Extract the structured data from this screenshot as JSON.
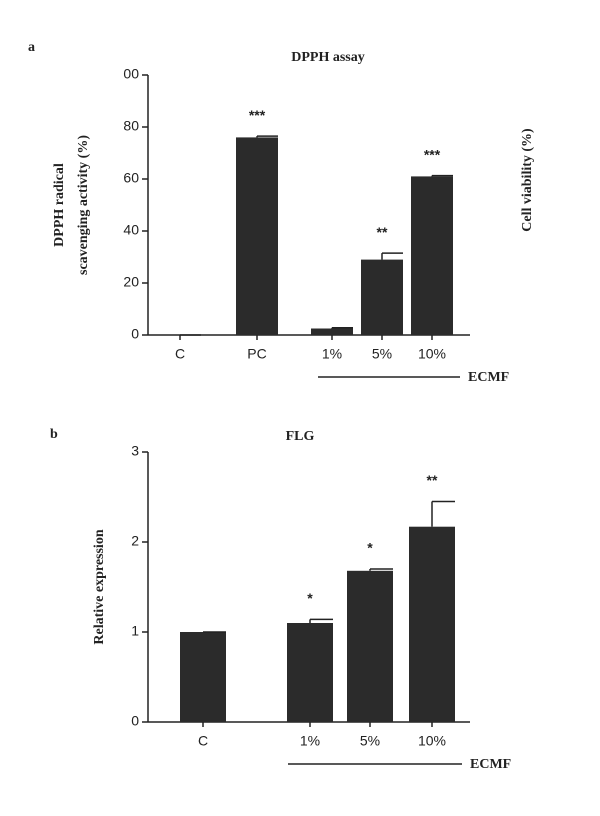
{
  "chart_data": [
    {
      "type": "bar",
      "panel": "a",
      "title": "DPPH assay",
      "ylabel": [
        "DPPH radical",
        "scavenging activity (%)"
      ],
      "y2label": "Cell viability (%)",
      "categories": [
        "C",
        "PC",
        "1%",
        "5%",
        "10%"
      ],
      "values": [
        0,
        76,
        2.5,
        29,
        61
      ],
      "errors": [
        0,
        0.5,
        0.3,
        2.5,
        0.3
      ],
      "significance": [
        null,
        "***",
        null,
        "**",
        "***"
      ],
      "group_label": "ECMF",
      "color": "#2b2b2b",
      "ylim": [
        0,
        100
      ],
      "yticks": [
        0,
        20,
        40,
        60,
        80,
        {
          "value": 100,
          "label": "00"
        }
      ]
    },
    {
      "type": "bar",
      "panel": "b",
      "title": "FLG",
      "ylabel": [
        "Relative expression"
      ],
      "categories": [
        "C",
        "1%",
        "5%",
        "10%"
      ],
      "values": [
        1,
        1.1,
        1.68,
        2.17
      ],
      "errors": [
        0,
        0.04,
        0.02,
        0.28
      ],
      "significance": [
        null,
        "*",
        "*",
        "**"
      ],
      "group_label": "ECMF",
      "color": "#2b2b2b",
      "ylim": [
        0,
        3
      ],
      "yticks": [
        0,
        1,
        2,
        3
      ]
    }
  ]
}
